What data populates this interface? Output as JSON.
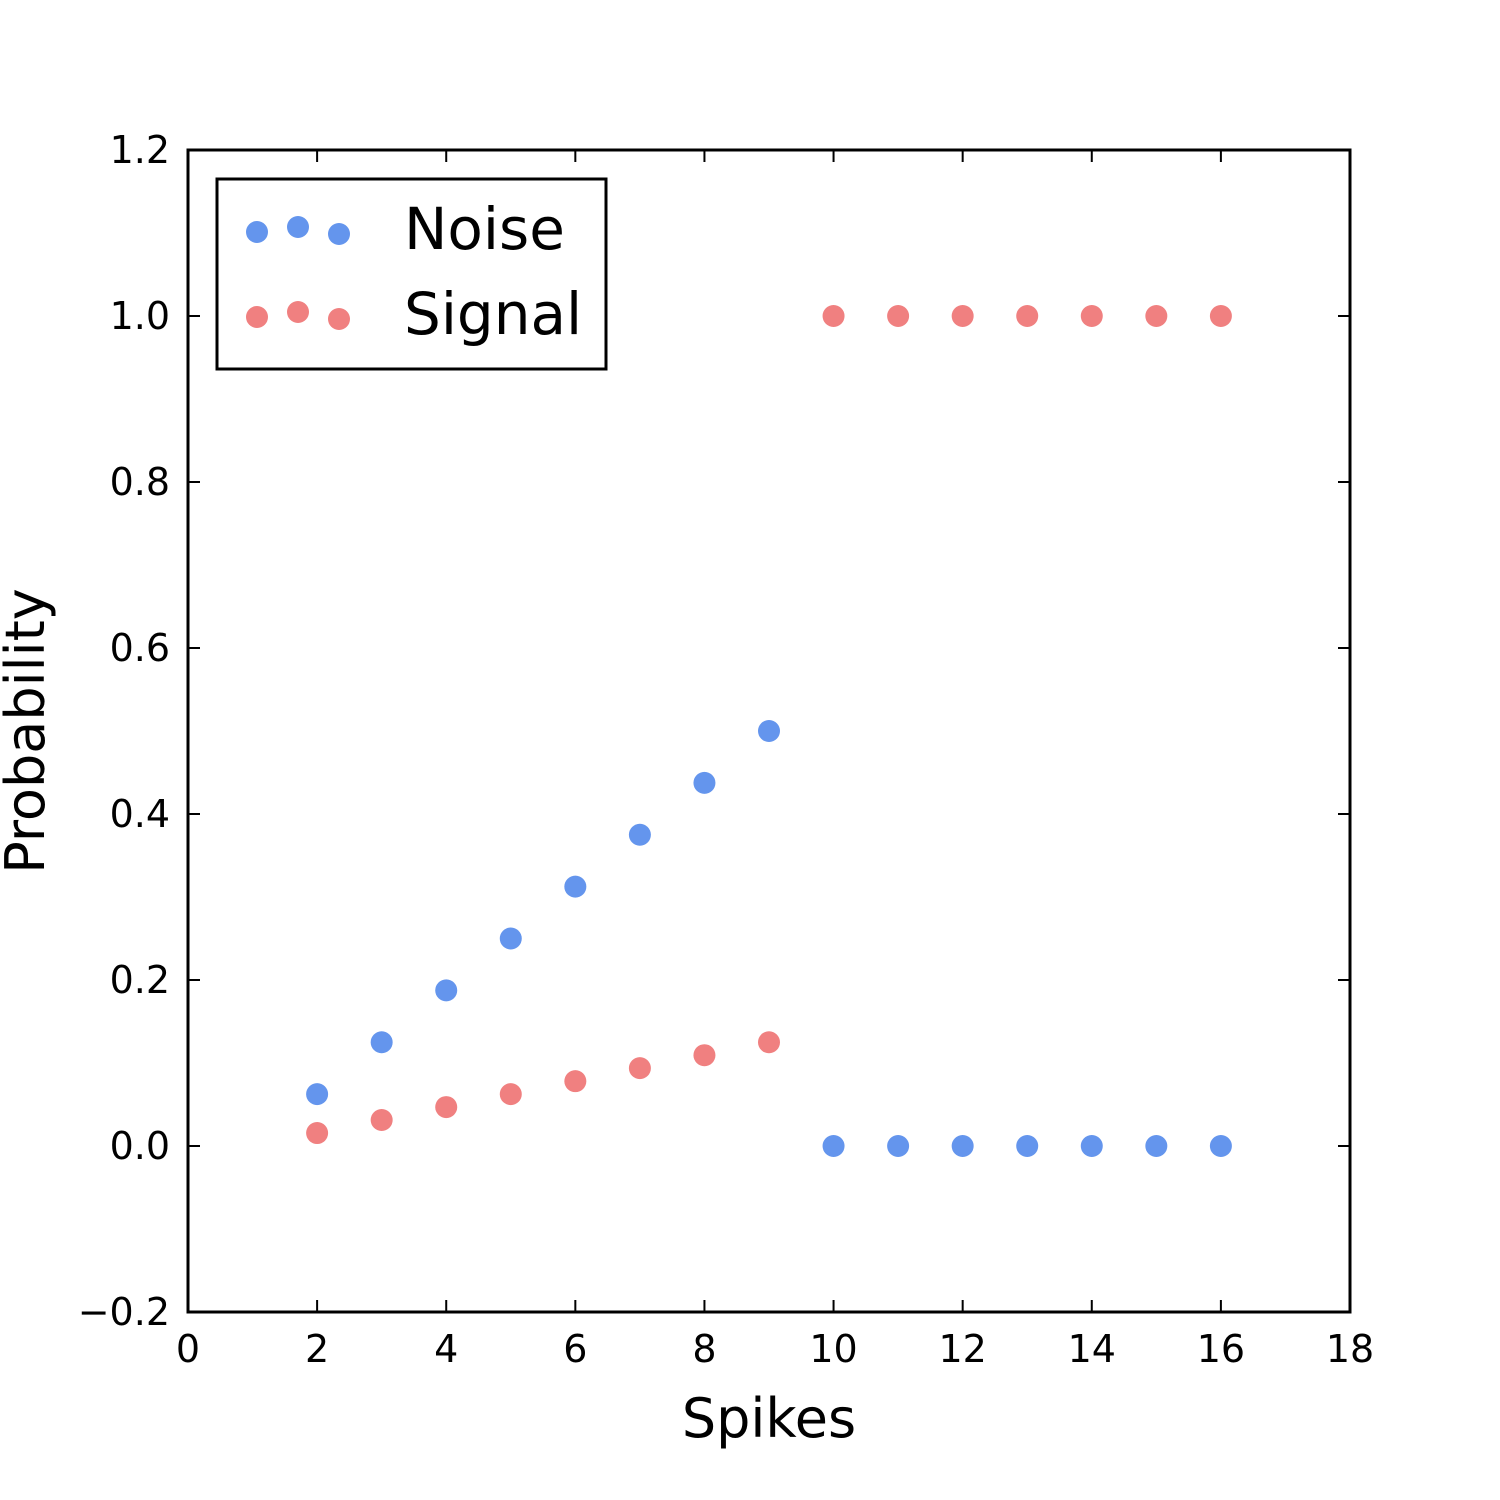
{
  "chart_data": {
    "type": "scatter",
    "title": "",
    "xlabel": "Spikes",
    "ylabel": "Probability",
    "xlim": [
      0,
      18
    ],
    "ylim": [
      -0.2,
      1.2
    ],
    "xticks": [
      0,
      2,
      4,
      6,
      8,
      10,
      12,
      14,
      16,
      18
    ],
    "xtick_labels": [
      "0",
      "2",
      "4",
      "6",
      "8",
      "10",
      "12",
      "14",
      "16",
      "18"
    ],
    "yticks": [
      -0.2,
      0.0,
      0.2,
      0.4,
      0.6,
      0.8,
      1.0,
      1.2
    ],
    "ytick_labels": [
      "−0.2",
      "0.0",
      "0.2",
      "0.4",
      "0.6",
      "0.8",
      "1.0",
      "1.2"
    ],
    "grid": false,
    "legend_position": "top-left",
    "series": [
      {
        "name": "Noise",
        "color": "#6495ED",
        "x": [
          2,
          3,
          4,
          5,
          6,
          7,
          8,
          9,
          10,
          11,
          12,
          13,
          14,
          15,
          16
        ],
        "y": [
          0.0625,
          0.125,
          0.1875,
          0.25,
          0.3125,
          0.375,
          0.4375,
          0.5,
          0,
          0,
          0,
          0,
          0,
          0,
          0
        ]
      },
      {
        "name": "Signal",
        "color": "#F08080",
        "x": [
          2,
          3,
          4,
          5,
          6,
          7,
          8,
          9,
          10,
          11,
          12,
          13,
          14,
          15,
          16
        ],
        "y": [
          0.0156,
          0.0313,
          0.0469,
          0.0625,
          0.0781,
          0.0938,
          0.1094,
          0.125,
          1,
          1,
          1,
          1,
          1,
          1,
          1
        ]
      }
    ]
  }
}
